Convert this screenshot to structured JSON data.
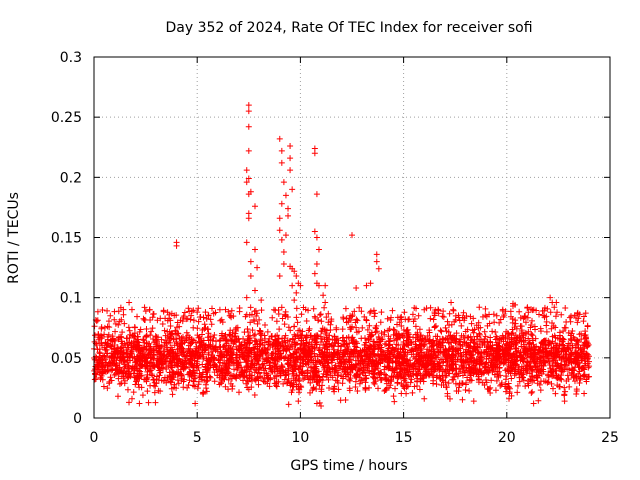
{
  "chart_data": {
    "type": "scatter",
    "title": "Day 352 of 2024, Rate Of TEC Index for receiver sofi",
    "xlabel": "GPS time / hours",
    "ylabel": "ROTI / TECUs",
    "xlim": [
      0,
      25
    ],
    "ylim": [
      0,
      0.3
    ],
    "xticks": [
      0,
      5,
      10,
      15,
      20,
      25
    ],
    "yticks": [
      0,
      0.05,
      0.1,
      0.15,
      0.2,
      0.25,
      0.3
    ],
    "xtick_labels": [
      "0",
      "5",
      "10",
      "15",
      "20",
      "25"
    ],
    "ytick_labels": [
      "0",
      "0.05",
      "0.1",
      "0.15",
      "0.2",
      "0.25",
      "0.3"
    ],
    "grid": true,
    "marker": "+",
    "color": "#ff0000",
    "series": [
      {
        "name": "ROTI",
        "x_range": [
          0,
          24
        ],
        "typical_range": [
          0.02,
          0.08
        ],
        "notable_points": [
          [
            4.0,
            0.146
          ],
          [
            4.0,
            0.143
          ],
          [
            7.4,
            0.1
          ],
          [
            7.5,
            0.26
          ],
          [
            7.5,
            0.255
          ],
          [
            7.5,
            0.242
          ],
          [
            7.5,
            0.222
          ],
          [
            7.5,
            0.199
          ],
          [
            7.5,
            0.186
          ],
          [
            7.5,
            0.17
          ],
          [
            7.5,
            0.166
          ],
          [
            7.4,
            0.146
          ],
          [
            7.6,
            0.13
          ],
          [
            7.6,
            0.118
          ],
          [
            7.8,
            0.14
          ],
          [
            7.9,
            0.125
          ],
          [
            7.8,
            0.106
          ],
          [
            8.1,
            0.098
          ],
          [
            7.6,
            0.188
          ],
          [
            7.8,
            0.176
          ],
          [
            7.4,
            0.206
          ],
          [
            7.4,
            0.196
          ],
          [
            9.0,
            0.232
          ],
          [
            9.1,
            0.222
          ],
          [
            9.1,
            0.212
          ],
          [
            9.2,
            0.196
          ],
          [
            9.3,
            0.185
          ],
          [
            9.1,
            0.178
          ],
          [
            9.0,
            0.166
          ],
          [
            9.0,
            0.156
          ],
          [
            9.1,
            0.148
          ],
          [
            9.3,
            0.152
          ],
          [
            9.4,
            0.168
          ],
          [
            9.2,
            0.138
          ],
          [
            9.2,
            0.128
          ],
          [
            9.0,
            0.118
          ],
          [
            9.5,
            0.226
          ],
          [
            9.5,
            0.216
          ],
          [
            9.5,
            0.206
          ],
          [
            9.6,
            0.19
          ],
          [
            9.4,
            0.174
          ],
          [
            9.5,
            0.126
          ],
          [
            9.6,
            0.124
          ],
          [
            9.7,
            0.122
          ],
          [
            9.8,
            0.118
          ],
          [
            9.6,
            0.11
          ],
          [
            9.8,
            0.104
          ],
          [
            9.9,
            0.112
          ],
          [
            10.0,
            0.11
          ],
          [
            9.7,
            0.098
          ],
          [
            10.7,
            0.224
          ],
          [
            10.7,
            0.22
          ],
          [
            10.8,
            0.186
          ],
          [
            10.7,
            0.155
          ],
          [
            10.8,
            0.15
          ],
          [
            10.9,
            0.14
          ],
          [
            10.8,
            0.128
          ],
          [
            10.7,
            0.12
          ],
          [
            10.8,
            0.112
          ],
          [
            10.9,
            0.11
          ],
          [
            11.2,
            0.11
          ],
          [
            11.1,
            0.102
          ],
          [
            11.2,
            0.096
          ],
          [
            12.5,
            0.152
          ],
          [
            13.7,
            0.136
          ],
          [
            13.7,
            0.13
          ],
          [
            13.8,
            0.124
          ],
          [
            13.4,
            0.112
          ],
          [
            13.2,
            0.11
          ],
          [
            12.7,
            0.108
          ],
          [
            1.7,
            0.096
          ],
          [
            2.7,
            0.09
          ],
          [
            5.0,
            0.088
          ],
          [
            5.4,
            0.088
          ],
          [
            6.1,
            0.09
          ],
          [
            16.0,
            0.09
          ],
          [
            17.3,
            0.096
          ],
          [
            17.4,
            0.09
          ],
          [
            20.3,
            0.095
          ],
          [
            20.3,
            0.093
          ],
          [
            20.4,
            0.094
          ],
          [
            21.0,
            0.092
          ],
          [
            22.1,
            0.1
          ],
          [
            22.2,
            0.096
          ],
          [
            22.4,
            0.096
          ],
          [
            22.3,
            0.092
          ],
          [
            2.2,
            0.012
          ],
          [
            4.9,
            0.012
          ],
          [
            10.8,
            0.012
          ],
          [
            18.4,
            0.014
          ],
          [
            21.3,
            0.012
          ],
          [
            22.8,
            0.014
          ],
          [
            11.0,
            0.01
          ],
          [
            9.9,
            0.014
          ],
          [
            16.0,
            0.016
          ]
        ]
      }
    ]
  }
}
